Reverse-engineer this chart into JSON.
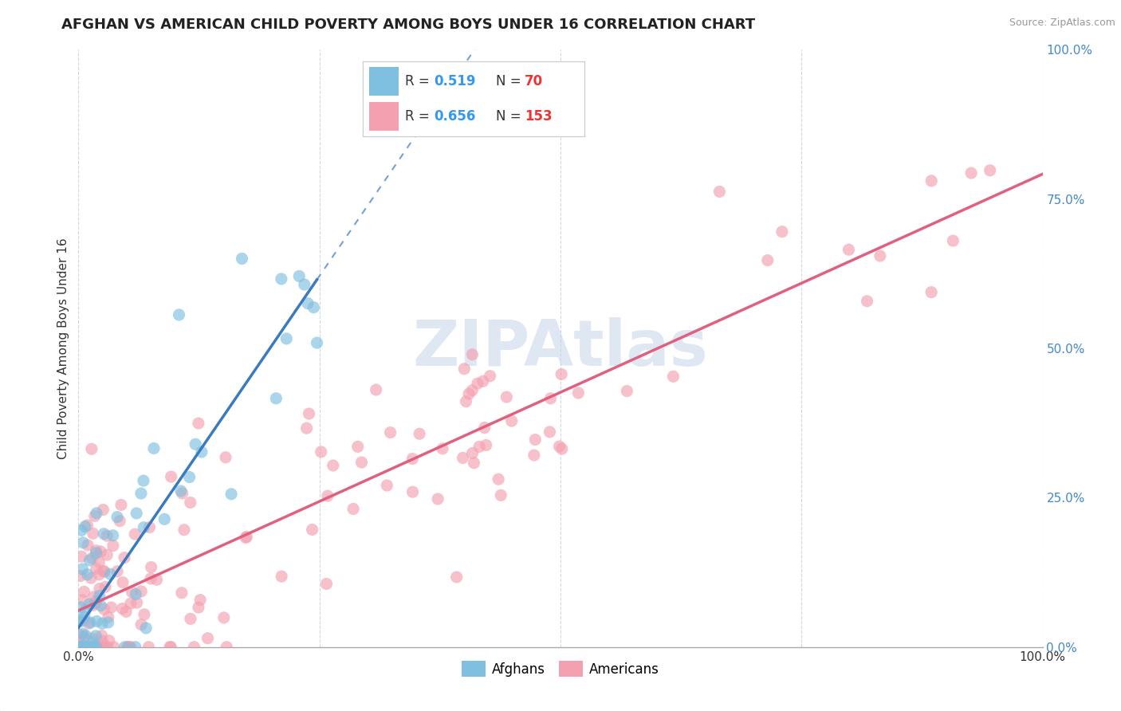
{
  "title": "AFGHAN VS AMERICAN CHILD POVERTY AMONG BOYS UNDER 16 CORRELATION CHART",
  "source": "Source: ZipAtlas.com",
  "ylabel": "Child Poverty Among Boys Under 16",
  "x_ticks": [
    0.0,
    0.25,
    0.5,
    0.75,
    1.0
  ],
  "x_tick_labels": [
    "0.0%",
    "",
    "",
    "",
    "100.0%"
  ],
  "y_ticks": [
    0.0,
    0.25,
    0.5,
    0.75,
    1.0
  ],
  "y_tick_labels_right": [
    "0.0%",
    "25.0%",
    "50.0%",
    "75.0%",
    "100.0%"
  ],
  "afghans_R": 0.519,
  "afghans_N": 70,
  "americans_R": 0.656,
  "americans_N": 153,
  "afghan_color": "#7fbfdf",
  "american_color": "#f4a0b0",
  "afghan_line_color": "#3a7abf",
  "american_line_color": "#e06080",
  "background_color": "#ffffff",
  "grid_color": "#d0d8e0",
  "watermark": "ZIPAtlas",
  "watermark_color": "#c5d5e8",
  "title_fontsize": 13,
  "source_fontsize": 9,
  "legend_fontsize": 13,
  "axis_label_fontsize": 11,
  "tick_fontsize": 11,
  "legend_R_color": "#3399ee",
  "legend_N_color": "#ee3333"
}
